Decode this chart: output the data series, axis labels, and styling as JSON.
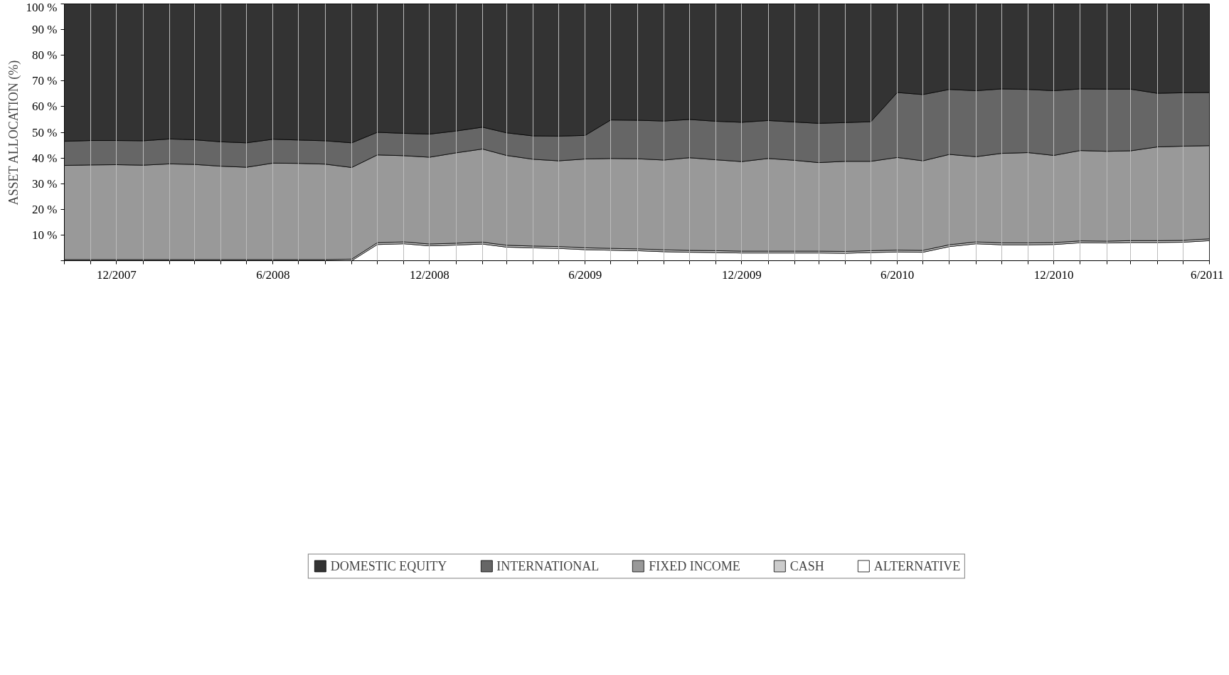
{
  "chart_data": {
    "type": "area",
    "stacked": true,
    "ylabel": "ASSET ALLOCATION (%)",
    "x": [
      "2007-10",
      "2007-11",
      "2007-12",
      "2008-01",
      "2008-02",
      "2008-03",
      "2008-04",
      "2008-05",
      "2008-06",
      "2008-07",
      "2008-08",
      "2008-09",
      "2008-10",
      "2008-11",
      "2008-12",
      "2009-01",
      "2009-02",
      "2009-03",
      "2009-04",
      "2009-05",
      "2009-06",
      "2009-07",
      "2009-08",
      "2009-09",
      "2009-10",
      "2009-11",
      "2009-12",
      "2010-01",
      "2010-02",
      "2010-03",
      "2010-04",
      "2010-05",
      "2010-06",
      "2010-07",
      "2010-08",
      "2010-09",
      "2010-10",
      "2010-11",
      "2010-12",
      "2011-01",
      "2011-02",
      "2011-03",
      "2011-04",
      "2011-05",
      "2011-06"
    ],
    "series": [
      {
        "name": "ALTERNATIVE",
        "color": "#ffffff",
        "values": [
          0,
          0,
          0,
          0,
          0,
          0,
          0,
          0,
          0,
          0,
          0,
          0,
          6.3,
          6.6,
          5.8,
          6.1,
          6.5,
          5.3,
          5.0,
          4.8,
          4.3,
          4.1,
          3.9,
          3.5,
          3.3,
          3.2,
          3.0,
          3.0,
          3.0,
          3.0,
          2.9,
          3.2,
          3.4,
          3.3,
          5.5,
          6.6,
          6.2,
          6.2,
          6.3,
          7.0,
          6.9,
          7.1,
          7.1,
          7.2,
          7.8
        ]
      },
      {
        "name": "CASH",
        "color": "#cccccc",
        "values": [
          0.4,
          0.4,
          0.4,
          0.4,
          0.4,
          0.4,
          0.4,
          0.4,
          0.4,
          0.4,
          0.4,
          0.6,
          0.7,
          0.7,
          0.7,
          0.7,
          0.7,
          0.7,
          0.7,
          0.7,
          0.7,
          0.7,
          0.7,
          0.7,
          0.7,
          0.7,
          0.7,
          0.7,
          0.7,
          0.7,
          0.7,
          0.7,
          0.7,
          0.7,
          0.7,
          0.7,
          0.7,
          0.7,
          0.7,
          0.7,
          0.7,
          0.7,
          0.7,
          0.7,
          0.7
        ]
      },
      {
        "name": "FIXED INCOME",
        "color": "#999999",
        "values": [
          36.7,
          36.9,
          37.0,
          36.8,
          37.3,
          37.1,
          36.4,
          36.0,
          37.6,
          37.5,
          37.2,
          35.7,
          34.2,
          33.6,
          33.8,
          35.2,
          36.3,
          35.0,
          33.8,
          33.4,
          34.6,
          35.0,
          35.1,
          35.0,
          36.1,
          35.4,
          34.9,
          36.1,
          35.4,
          34.5,
          35.1,
          34.8,
          36.1,
          34.9,
          35.2,
          33.2,
          34.9,
          35.2,
          34.0,
          35.2,
          35.0,
          35.0,
          36.5,
          36.7,
          36.3
        ]
      },
      {
        "name": "INTERNATIONAL",
        "color": "#666666",
        "values": [
          9.4,
          9.5,
          9.4,
          9.5,
          9.7,
          9.6,
          9.5,
          9.5,
          9.3,
          9.1,
          9.1,
          9.6,
          8.8,
          8.7,
          9.0,
          8.5,
          8.5,
          8.8,
          9.1,
          9.6,
          9.2,
          15.0,
          15.0,
          15.2,
          14.9,
          15.0,
          15.3,
          14.8,
          14.9,
          15.3,
          15.1,
          15.4,
          25.3,
          25.8,
          25.3,
          25.7,
          25.1,
          24.6,
          25.2,
          24.0,
          24.2,
          24.0,
          20.9,
          20.8,
          20.7
        ]
      },
      {
        "name": "DOMESTIC EQUITY",
        "color": "#333333",
        "values": [
          53.5,
          53.2,
          53.2,
          53.3,
          52.6,
          52.9,
          53.7,
          54.1,
          52.7,
          53.0,
          53.3,
          54.1,
          50.0,
          50.4,
          50.7,
          49.5,
          48.0,
          50.2,
          51.4,
          51.5,
          51.2,
          45.2,
          45.3,
          45.6,
          45.0,
          45.7,
          46.1,
          45.4,
          46.0,
          46.5,
          46.2,
          45.9,
          34.5,
          35.3,
          33.3,
          33.8,
          33.1,
          33.3,
          33.8,
          33.1,
          33.2,
          33.2,
          34.8,
          34.6,
          34.5
        ]
      }
    ],
    "xlim": [
      "2007-10",
      "2011-06"
    ],
    "xticks": [
      {
        "value": "2007-10",
        "label": null
      },
      {
        "value": "2007-11",
        "label": null
      },
      {
        "value": "2007-12",
        "label": "12/2007"
      },
      {
        "value": "2008-01",
        "label": null
      },
      {
        "value": "2008-02",
        "label": null
      },
      {
        "value": "2008-03",
        "label": null
      },
      {
        "value": "2008-04",
        "label": null
      },
      {
        "value": "2008-05",
        "label": null
      },
      {
        "value": "2008-06",
        "label": "6/2008"
      },
      {
        "value": "2008-07",
        "label": null
      },
      {
        "value": "2008-08",
        "label": null
      },
      {
        "value": "2008-09",
        "label": null
      },
      {
        "value": "2008-10",
        "label": null
      },
      {
        "value": "2008-11",
        "label": null
      },
      {
        "value": "2008-12",
        "label": "12/2008"
      },
      {
        "value": "2009-01",
        "label": null
      },
      {
        "value": "2009-02",
        "label": null
      },
      {
        "value": "2009-03",
        "label": null
      },
      {
        "value": "2009-04",
        "label": null
      },
      {
        "value": "2009-05",
        "label": null
      },
      {
        "value": "2009-06",
        "label": "6/2009"
      },
      {
        "value": "2009-07",
        "label": null
      },
      {
        "value": "2009-08",
        "label": null
      },
      {
        "value": "2009-09",
        "label": null
      },
      {
        "value": "2009-10",
        "label": null
      },
      {
        "value": "2009-11",
        "label": null
      },
      {
        "value": "2009-12",
        "label": "12/2009"
      },
      {
        "value": "2010-01",
        "label": null
      },
      {
        "value": "2010-02",
        "label": null
      },
      {
        "value": "2010-03",
        "label": null
      },
      {
        "value": "2010-04",
        "label": null
      },
      {
        "value": "2010-05",
        "label": null
      },
      {
        "value": "2010-06",
        "label": "6/2010"
      },
      {
        "value": "2010-07",
        "label": null
      },
      {
        "value": "2010-08",
        "label": null
      },
      {
        "value": "2010-09",
        "label": null
      },
      {
        "value": "2010-10",
        "label": null
      },
      {
        "value": "2010-11",
        "label": null
      },
      {
        "value": "2010-12",
        "label": "12/2010"
      },
      {
        "value": "2011-01",
        "label": null
      },
      {
        "value": "2011-02",
        "label": null
      },
      {
        "value": "2011-03",
        "label": null
      },
      {
        "value": "2011-04",
        "label": null
      },
      {
        "value": "2011-05",
        "label": null
      },
      {
        "value": "2011-06",
        "label": "6/2011"
      }
    ],
    "ylim": [
      0,
      100
    ],
    "yticks": [
      {
        "value": 0,
        "label": null
      },
      {
        "value": 10,
        "label": "10 %"
      },
      {
        "value": 20,
        "label": "20 %"
      },
      {
        "value": 30,
        "label": "30 %"
      },
      {
        "value": 40,
        "label": "40 %"
      },
      {
        "value": 50,
        "label": "50 %"
      },
      {
        "value": 60,
        "label": "60 %"
      },
      {
        "value": 70,
        "label": "70 %"
      },
      {
        "value": 80,
        "label": "80 %"
      },
      {
        "value": 90,
        "label": "90 %"
      },
      {
        "value": 100,
        "label": "100 %"
      }
    ],
    "grid": "x",
    "legend": "bottom"
  }
}
